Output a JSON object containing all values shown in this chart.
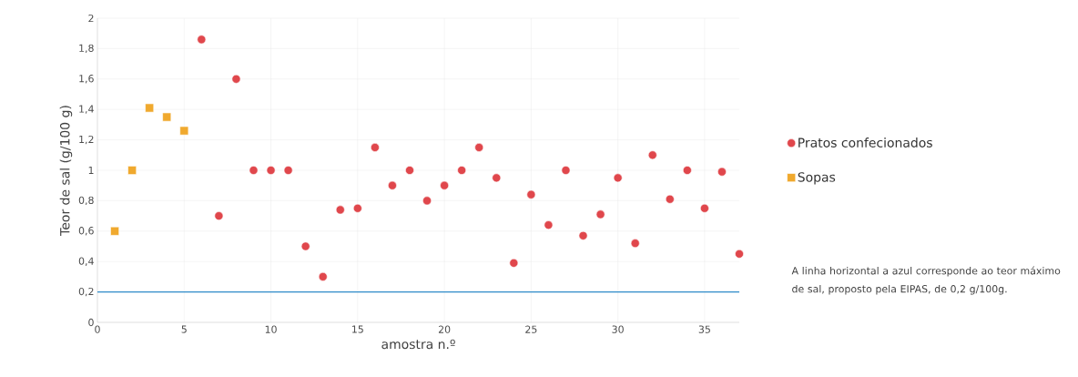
{
  "chart_data": {
    "type": "scatter",
    "xlabel": "amostra n.º",
    "ylabel": "Teor de sal (g/100 g)",
    "xlim": [
      0,
      37
    ],
    "xticks": [
      0,
      5,
      10,
      15,
      20,
      25,
      30,
      35
    ],
    "ylim": [
      0,
      2
    ],
    "yticks": [
      0,
      {
        "value": 0.2,
        "label": "0,2"
      },
      {
        "value": 0.4,
        "label": "0,4"
      },
      {
        "value": 0.6,
        "label": "0,6"
      },
      {
        "value": 0.8,
        "label": "0,8"
      },
      1,
      {
        "value": 1.2,
        "label": "1,2"
      },
      {
        "value": 1.4,
        "label": "1,4"
      },
      {
        "value": 1.6,
        "label": "1,6"
      },
      {
        "value": 1.8,
        "label": "1,8"
      },
      2
    ],
    "grid": true,
    "legend": "right",
    "series": [
      {
        "name": "Pratos confecionados",
        "color": "#e0474c",
        "marker": "circle",
        "x": [
          6,
          7,
          8,
          9,
          10,
          11,
          12,
          13,
          14,
          15,
          16,
          17,
          18,
          19,
          20,
          21,
          22,
          23,
          24,
          25,
          26,
          27,
          28,
          29,
          30,
          31,
          32,
          33,
          34,
          35,
          36,
          37
        ],
        "values": [
          1.86,
          0.7,
          1.6,
          1.0,
          1.0,
          1.0,
          0.5,
          0.3,
          0.74,
          0.75,
          1.15,
          0.9,
          1.0,
          0.8,
          0.9,
          1.0,
          1.15,
          0.95,
          0.39,
          0.84,
          0.64,
          1.0,
          0.57,
          0.71,
          0.95,
          0.52,
          1.1,
          0.81,
          1.0,
          0.75,
          0.99,
          0.45
        ]
      },
      {
        "name": "Sopas",
        "color": "#f0a92e",
        "marker": "square",
        "x": [
          1,
          2,
          3,
          4,
          5
        ],
        "values": [
          0.6,
          1.0,
          1.41,
          1.35,
          1.26
        ]
      }
    ],
    "ref_lines": [
      {
        "axis": "y",
        "value": 0.2,
        "color": "#2e8bc9"
      }
    ],
    "annotations": [
      "A linha horizontal a azul corresponde ao teor máximo de sal, proposto pela EIPAS, de 0,2 g/100g."
    ]
  }
}
